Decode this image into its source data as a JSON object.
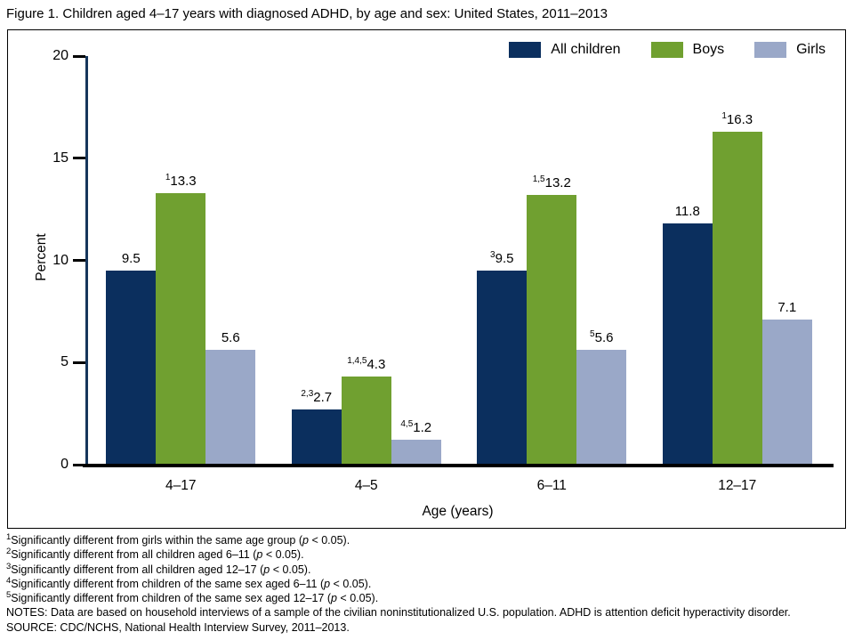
{
  "chart_data": {
    "type": "bar",
    "title": "Figure 1. Children aged 4–17 years with diagnosed ADHD, by age and sex: United States, 2011–2013",
    "categories": [
      "4–17",
      "4–5",
      "6–11",
      "12–17"
    ],
    "series": [
      {
        "name": "All children",
        "color": "#0b2f5e",
        "values": [
          9.5,
          2.7,
          9.5,
          11.8
        ],
        "label_prefixes": [
          "",
          "2,3",
          "3",
          ""
        ]
      },
      {
        "name": "Boys",
        "color": "#70a030",
        "values": [
          13.3,
          4.3,
          13.2,
          16.3
        ],
        "label_prefixes": [
          "1",
          "1,4,5",
          "1,5",
          "1"
        ]
      },
      {
        "name": "Girls",
        "color": "#9aa8c8",
        "values": [
          5.6,
          1.2,
          5.6,
          7.1
        ],
        "label_prefixes": [
          "",
          "4,5",
          "5",
          ""
        ]
      }
    ],
    "xlabel": "Age (years)",
    "ylabel": "Percent",
    "ylim": [
      0,
      20
    ],
    "yticks": [
      0,
      5,
      10,
      15,
      20
    ],
    "legend_position": "top-right",
    "grid": false,
    "axis_color": "#16365c"
  },
  "footnotes": [
    {
      "sup": "1",
      "text": "Significantly different from girls within the same age group (p < 0.05)."
    },
    {
      "sup": "2",
      "text": "Significantly different from all children aged 6–11 (p < 0.05)."
    },
    {
      "sup": "3",
      "text": "Significantly different from all children aged 12–17 (p < 0.05)."
    },
    {
      "sup": "4",
      "text": "Significantly different from children of the same sex aged 6–11 (p < 0.05)."
    },
    {
      "sup": "5",
      "text": "Significantly different from children of the same sex aged 12–17 (p < 0.05)."
    }
  ],
  "notes": "NOTES: Data are based on household interviews of a sample of the civilian noninstitutionalized U.S. population. ADHD is attention deficit hyperactivity disorder.",
  "source": "SOURCE: CDC/NCHS, National Health Interview Survey, 2011–2013."
}
